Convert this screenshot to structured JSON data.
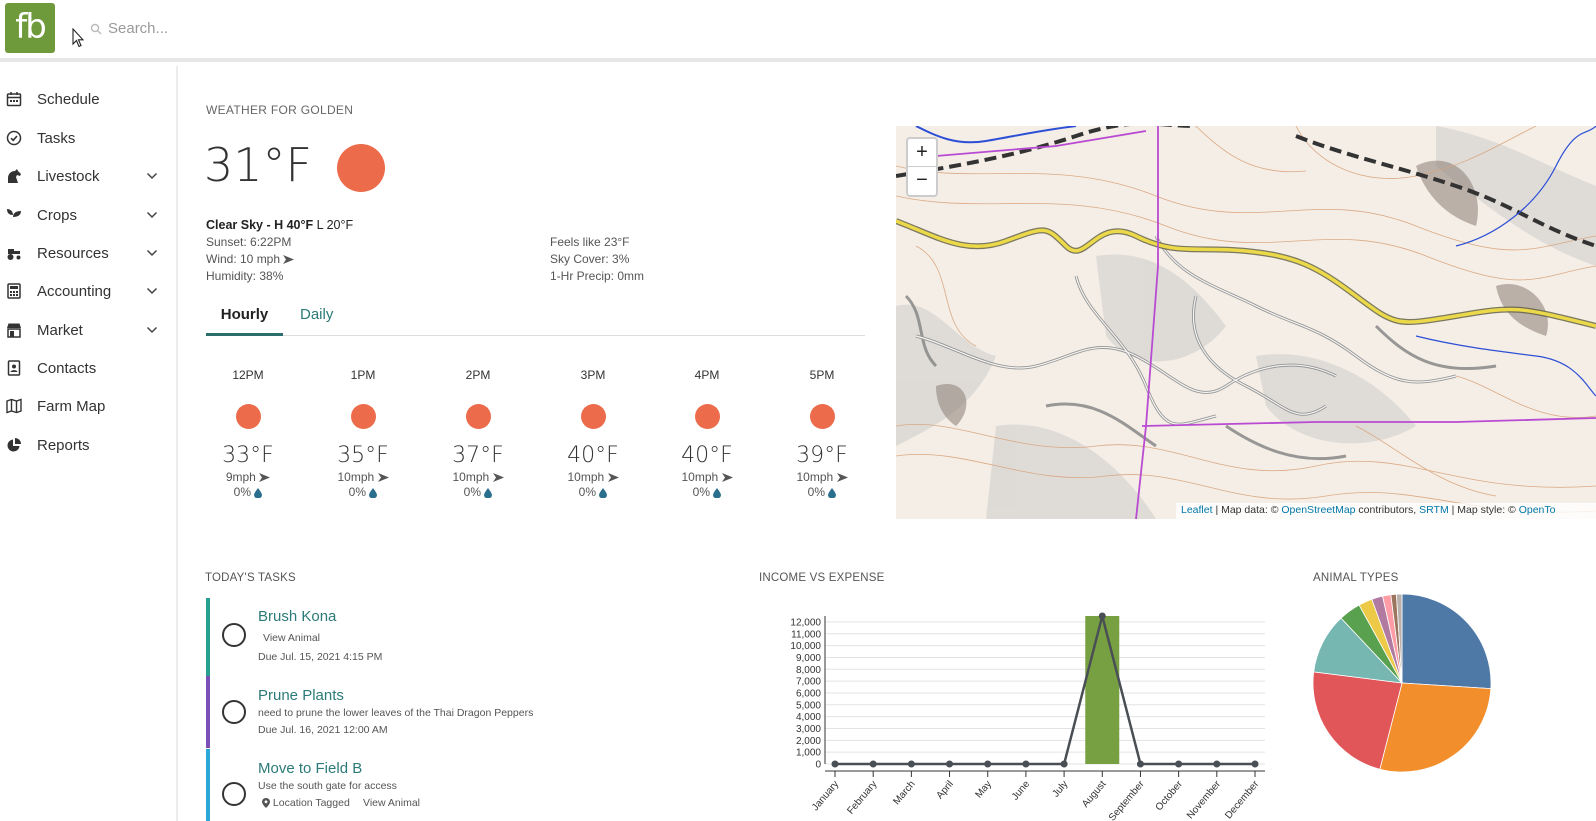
{
  "app": {
    "logo": "fb"
  },
  "search": {
    "placeholder": "Search..."
  },
  "sidebar": {
    "items": [
      {
        "label": "Schedule",
        "icon": "calendar-icon",
        "expandable": false
      },
      {
        "label": "Tasks",
        "icon": "check-circle-icon",
        "expandable": false
      },
      {
        "label": "Livestock",
        "icon": "horse-icon",
        "expandable": true
      },
      {
        "label": "Crops",
        "icon": "seedling-icon",
        "expandable": true
      },
      {
        "label": "Resources",
        "icon": "tractor-icon",
        "expandable": true
      },
      {
        "label": "Accounting",
        "icon": "calculator-icon",
        "expandable": true
      },
      {
        "label": "Market",
        "icon": "store-icon",
        "expandable": true
      },
      {
        "label": "Contacts",
        "icon": "address-book-icon",
        "expandable": false
      },
      {
        "label": "Farm Map",
        "icon": "map-icon",
        "expandable": false
      },
      {
        "label": "Reports",
        "icon": "pie-chart-icon",
        "expandable": false
      }
    ]
  },
  "weather": {
    "title": "WEATHER FOR GOLDEN",
    "current_temp": "31°F",
    "condition": "Clear Sky - H 40°F",
    "low": "L 20°F",
    "sunset": "Sunset: 6:22PM",
    "wind": "Wind: 10 mph",
    "humidity": "Humidity: 38%",
    "feels_like": "Feels like 23°F",
    "sky_cover": "Sky Cover: 3%",
    "precip": "1-Hr Precip: 0mm",
    "sun_color": "#ec6b4b",
    "tabs": [
      {
        "label": "Hourly",
        "active": true
      },
      {
        "label": "Daily",
        "active": false
      }
    ],
    "hourly": [
      {
        "time": "12PM",
        "temp": "33°F",
        "wind": "9mph",
        "precip": "0%"
      },
      {
        "time": "1PM",
        "temp": "35°F",
        "wind": "10mph",
        "precip": "0%"
      },
      {
        "time": "2PM",
        "temp": "37°F",
        "wind": "10mph",
        "precip": "0%"
      },
      {
        "time": "3PM",
        "temp": "40°F",
        "wind": "10mph",
        "precip": "0%"
      },
      {
        "time": "4PM",
        "temp": "40°F",
        "wind": "10mph",
        "precip": "0%"
      },
      {
        "time": "5PM",
        "temp": "39°F",
        "wind": "10mph",
        "precip": "0%"
      }
    ]
  },
  "map": {
    "zoom_in": "+",
    "zoom_out": "−",
    "attribution": {
      "leaflet": "Leaflet",
      "map_data": " | Map data: © ",
      "osm": "OpenStreetMap",
      "contributors": " contributors, ",
      "srtm": "SRTM",
      "style": " | Map style: © ",
      "opentopo": "OpenTo"
    }
  },
  "tasks": {
    "title": "TODAY'S TASKS",
    "items": [
      {
        "title": "Brush Kona",
        "sub": "View Animal",
        "due": "Due Jul. 15, 2021 4:15 PM",
        "color": "#28a08e"
      },
      {
        "title": "Prune Plants",
        "sub": "need to prune the lower leaves of the Thai Dragon Peppers",
        "due": "Due Jul. 16, 2021 12:00 AM",
        "color": "#7b4fb8"
      },
      {
        "title": "Move to Field B",
        "sub": "Use the south gate for access",
        "tag1": "Location Tagged",
        "tag2": "View Animal",
        "color": "#2aa8d8"
      }
    ]
  },
  "income_expense": {
    "title": "INCOME VS EXPENSE"
  },
  "animal_types": {
    "title": "ANIMAL TYPES"
  },
  "chart_data": [
    {
      "type": "bar",
      "title": "INCOME VS EXPENSE",
      "categories": [
        "January",
        "February",
        "March",
        "April",
        "May",
        "June",
        "July",
        "August",
        "September",
        "October",
        "November",
        "December"
      ],
      "y_ticks": [
        "0",
        "1,000",
        "2,000",
        "3,000",
        "4,000",
        "5,000",
        "6,000",
        "7,000",
        "8,000",
        "9,000",
        "10,000",
        "11,000",
        "12,000"
      ],
      "ylim": [
        0,
        12500
      ],
      "series": [
        {
          "type": "bar",
          "color": "#77a042",
          "values": [
            0,
            0,
            0,
            0,
            0,
            0,
            0,
            12500,
            0,
            0,
            0,
            0
          ]
        },
        {
          "type": "line",
          "color": "#4a4f55",
          "values": [
            0,
            0,
            0,
            0,
            0,
            0,
            0,
            12500,
            0,
            0,
            0,
            0
          ]
        }
      ],
      "grid": true
    },
    {
      "type": "pie",
      "title": "ANIMAL TYPES",
      "slices": [
        {
          "value": 26,
          "color": "#4e79a7"
        },
        {
          "value": 28,
          "color": "#f28e2b"
        },
        {
          "value": 23,
          "color": "#e15759"
        },
        {
          "value": 11,
          "color": "#76b7b2"
        },
        {
          "value": 4,
          "color": "#59a14f"
        },
        {
          "value": 2.5,
          "color": "#edc948"
        },
        {
          "value": 2,
          "color": "#b07aa1"
        },
        {
          "value": 1.5,
          "color": "#ff9da7"
        },
        {
          "value": 1,
          "color": "#9c755f"
        },
        {
          "value": 1,
          "color": "#bab0ac"
        }
      ]
    }
  ]
}
